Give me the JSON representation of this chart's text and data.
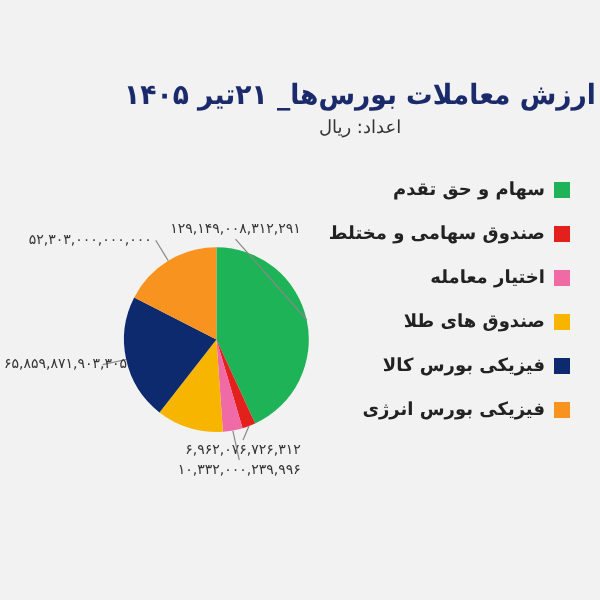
{
  "chart_data": {
    "type": "pie",
    "title": "ارزش معاملات بورس‌ها_ ۲۱تیر ۱۴۰۵",
    "subtitle": "اعداد: ریال",
    "categories": [
      "سهام و حق تقدم",
      "صندوق سهامی و مختلط",
      "اختیار معامله",
      "صندوق های طلا",
      "فیزیکی بورس کالا",
      "فیزیکی بورس انرژی"
    ],
    "values": [
      129149008312291,
      6962076726312,
      10332000239996,
      35000000000000,
      65859871903305,
      52303000000000
    ],
    "value_labels": [
      "۱۲۹,۱۴۹,۰۰۸,۳۱۲,۲۹۱",
      "۶,۹۶۲,۰۷۶,۷۲۶,۳۱۲",
      "۱۰,۳۳۲,۰۰۰,۲۳۹,۹۹۶",
      null,
      "۶۵,۸۵۹,۸۷۱,۹۰۳,۳۰۵",
      "۵۲,۳۰۳,۰۰۰,۰۰۰,۰۰۰"
    ],
    "colors": [
      "#1fb357",
      "#e3201c",
      "#f06aa6",
      "#f7b500",
      "#0e2a6e",
      "#f7931e"
    ],
    "legend": "right"
  }
}
